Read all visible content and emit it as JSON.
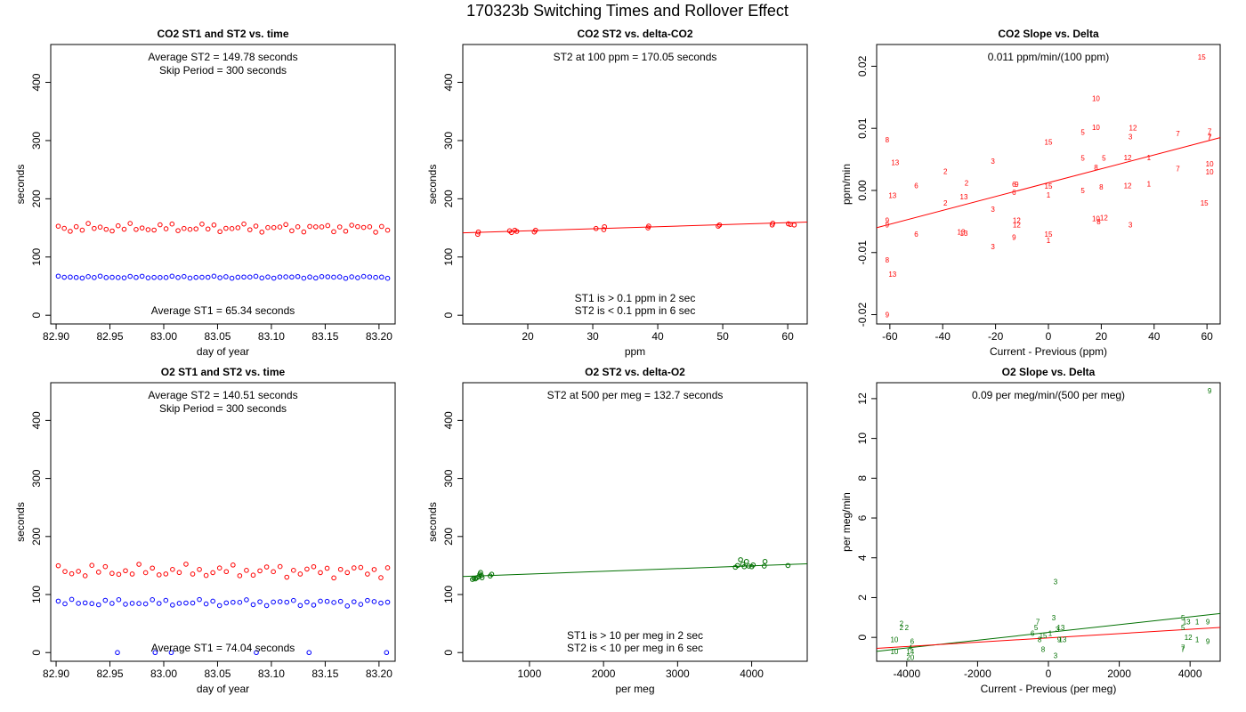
{
  "title": "170323b   Switching Times and Rollover Effect",
  "colors": {
    "red": "#ff0000",
    "blue": "#0000ff",
    "green": "#007000",
    "axis": "#000000"
  },
  "chart_data": [
    {
      "id": "co2-time",
      "type": "scatter",
      "title": "CO2 ST1 and ST2 vs. time",
      "xlabel": "day of year",
      "ylabel": "seconds",
      "xlim": [
        82.895,
        83.215
      ],
      "ylim": [
        -15,
        465
      ],
      "xticks": [
        82.9,
        82.95,
        83.0,
        83.05,
        83.1,
        83.15,
        83.2
      ],
      "xtick_labels": [
        "82.90",
        "82.95",
        "83.00",
        "83.05",
        "83.10",
        "83.15",
        "83.20"
      ],
      "yticks": [
        0,
        100,
        200,
        300,
        400
      ],
      "ytick_labels": [
        "0",
        "100",
        "200",
        "300",
        "400"
      ],
      "annotations": [
        {
          "text": "Average ST2 =  149.78  seconds",
          "pos": "top1"
        },
        {
          "text": "Skip Period =  300  seconds",
          "pos": "top2"
        },
        {
          "text": "Average ST1 =  65.34  seconds",
          "pos": "bottom1"
        }
      ],
      "series": [
        {
          "name": "ST2",
          "color": "red",
          "marker": "circle",
          "gen": "time",
          "t0": 82.902,
          "t1": 83.208,
          "n": 56,
          "base": 150,
          "amp": 8,
          "phase": 0.3
        },
        {
          "name": "ST1",
          "color": "blue",
          "marker": "circle",
          "gen": "time",
          "t0": 82.902,
          "t1": 83.208,
          "n": 56,
          "base": 65.3,
          "amp": 2,
          "phase": 1.1
        }
      ]
    },
    {
      "id": "co2-st2-delta",
      "type": "scatter",
      "title": "CO2 ST2 vs. delta-CO2",
      "xlabel": "ppm",
      "ylabel": "seconds",
      "xlim": [
        10,
        63
      ],
      "ylim": [
        -15,
        465
      ],
      "xticks": [
        20,
        30,
        40,
        50,
        60
      ],
      "xtick_labels": [
        "20",
        "30",
        "40",
        "50",
        "60"
      ],
      "yticks": [
        0,
        100,
        200,
        300,
        400
      ],
      "ytick_labels": [
        "0",
        "100",
        "200",
        "300",
        "400"
      ],
      "annotations": [
        {
          "text": "ST2 at 100 ppm =  170.05  seconds",
          "pos": "top1"
        },
        {
          "text": "ST1 is > 0.1 ppm in 2 sec",
          "pos": "bottom2"
        },
        {
          "text": "ST2 is < 0.1 ppm in 6 sec",
          "pos": "bottom1"
        }
      ],
      "series": [
        {
          "name": "ST2",
          "color": "red",
          "marker": "circle",
          "x": [
            12.3,
            12.4,
            17.2,
            17.5,
            18.0,
            18.3,
            21.0,
            21.2,
            30.5,
            31.7,
            31.8,
            38.5,
            38.6,
            49.3,
            49.5,
            57.6,
            57.7,
            60.1,
            60.4,
            61.0
          ],
          "y": [
            139,
            143,
            145,
            142,
            146,
            144,
            143,
            146,
            149,
            147,
            152,
            150,
            153,
            153,
            155,
            155,
            158,
            157,
            156,
            155
          ]
        }
      ],
      "lines": [
        {
          "color": "red",
          "x": [
            10,
            63
          ],
          "y": [
            141.5,
            160
          ]
        }
      ]
    },
    {
      "id": "co2-slope",
      "type": "scatter",
      "title": "CO2 Slope vs. Delta",
      "xlabel": "Current - Previous (ppm)",
      "ylabel": "ppm/min",
      "xlim": [
        -65,
        65
      ],
      "ylim": [
        -0.0215,
        0.0235
      ],
      "xticks": [
        -60,
        -40,
        -20,
        0,
        20,
        40,
        60
      ],
      "xtick_labels": [
        "-60",
        "-40",
        "-20",
        "0",
        "20",
        "40",
        "60"
      ],
      "yticks": [
        -0.02,
        -0.01,
        0.0,
        0.01,
        0.02
      ],
      "ytick_labels": [
        "-0.02",
        "-0.01",
        "0.00",
        "0.01",
        "0.02"
      ],
      "annotations": [
        {
          "text": "0.011  ppm/min/(100 ppm)",
          "pos": "top1"
        }
      ],
      "series": [
        {
          "name": "hours",
          "color": "red",
          "marker": "label",
          "labels": [
            "15",
            "8",
            "10",
            "7",
            "7",
            "7",
            "12",
            "3",
            "10",
            "5",
            "7",
            "15",
            "13",
            "5",
            "12",
            "1",
            "2",
            "3",
            "5",
            "10",
            "8",
            "7",
            "10",
            "2",
            "5",
            "6",
            "9",
            "6",
            "15",
            "12",
            "1",
            "8",
            "13",
            "6",
            "1",
            "13",
            "2",
            "3",
            "12",
            "15",
            "10",
            "9",
            "12",
            "8",
            "12",
            "3",
            "13",
            "13",
            "9",
            "6",
            "9",
            "15",
            "1",
            "8",
            "3",
            "13",
            "9"
          ],
          "x": [
            58,
            -61,
            18,
            61,
            61,
            61,
            32,
            31,
            18,
            13,
            49,
            0,
            -58,
            13,
            30,
            38,
            -39,
            -21,
            21,
            61,
            18,
            49,
            61,
            -31,
            13,
            -50,
            -12,
            -13,
            0,
            30,
            38,
            20,
            -59,
            -13,
            0,
            -32,
            -39,
            -21,
            21,
            59,
            18,
            -61,
            -12,
            19,
            -12,
            31,
            -33,
            -32,
            -13,
            -50,
            -61,
            0,
            0,
            -61,
            -21,
            -59,
            -61
          ],
          "y": [
            0.0215,
            0.0082,
            0.0148,
            0.0095,
            0.0085,
            0.0087,
            0.0101,
            0.0087,
            0.0102,
            0.0094,
            0.0092,
            0.0078,
            0.0045,
            0.0052,
            0.0053,
            0.0053,
            0.0031,
            0.0047,
            0.0052,
            0.0043,
            0.0037,
            0.0035,
            0.003,
            0.0012,
            0.0,
            0.0008,
            0.001,
            0.001,
            0.0007,
            0.0008,
            0.0011,
            0.0006,
            -0.0008,
            -0.0003,
            -0.0007,
            -0.001,
            -0.002,
            -0.003,
            -0.0044,
            -0.002,
            -0.0045,
            -0.0048,
            -0.0048,
            -0.005,
            -0.0055,
            -0.0055,
            -0.0067,
            -0.0069,
            -0.0075,
            -0.007,
            -0.0055,
            -0.007,
            -0.008,
            -0.0112,
            -0.009,
            -0.0135,
            -0.02
          ]
        }
      ],
      "lines": [
        {
          "color": "red",
          "x": [
            -65,
            65
          ],
          "y": [
            -0.006,
            0.0085
          ]
        }
      ]
    },
    {
      "id": "o2-time",
      "type": "scatter",
      "title": "O2 ST1 and ST2 vs. time",
      "xlabel": "day of year",
      "ylabel": "seconds",
      "xlim": [
        82.895,
        83.215
      ],
      "ylim": [
        -15,
        465
      ],
      "xticks": [
        82.9,
        82.95,
        83.0,
        83.05,
        83.1,
        83.15,
        83.2
      ],
      "xtick_labels": [
        "82.90",
        "82.95",
        "83.00",
        "83.05",
        "83.10",
        "83.15",
        "83.20"
      ],
      "yticks": [
        0,
        100,
        200,
        300,
        400
      ],
      "ytick_labels": [
        "0",
        "100",
        "200",
        "300",
        "400"
      ],
      "annotations": [
        {
          "text": "Average ST2 =  140.51  seconds",
          "pos": "top1"
        },
        {
          "text": "Skip Period =  300  seconds",
          "pos": "top2"
        },
        {
          "text": "Average ST1 =  74.04  seconds",
          "pos": "bottom1"
        }
      ],
      "series": [
        {
          "name": "ST2",
          "color": "red",
          "marker": "circle",
          "gen": "time",
          "t0": 82.902,
          "t1": 83.208,
          "n": 50,
          "base": 140.5,
          "amp": 12,
          "phase": 0.7
        },
        {
          "name": "ST1",
          "color": "blue",
          "marker": "circle",
          "gen": "time",
          "t0": 82.902,
          "t1": 83.208,
          "n": 50,
          "base": 86,
          "amp": 6,
          "phase": 2.0,
          "zeros": [
            82.957,
            82.992,
            83.007,
            83.086,
            83.135,
            83.207
          ]
        }
      ]
    },
    {
      "id": "o2-st2-delta",
      "type": "scatter",
      "title": "O2 ST2 vs. delta-O2",
      "xlabel": "per meg",
      "ylabel": "seconds",
      "xlim": [
        100,
        4750
      ],
      "ylim": [
        -15,
        465
      ],
      "xticks": [
        1000,
        2000,
        3000,
        4000
      ],
      "xtick_labels": [
        "1000",
        "2000",
        "3000",
        "4000"
      ],
      "yticks": [
        0,
        100,
        200,
        300,
        400
      ],
      "ytick_labels": [
        "0",
        "100",
        "200",
        "300",
        "400"
      ],
      "annotations": [
        {
          "text": "ST2 at 500 per meg =  132.7  seconds",
          "pos": "top1"
        },
        {
          "text": "ST1 is > 10 per meg in 2 sec",
          "pos": "bottom2"
        },
        {
          "text": "ST2 is < 10 per meg in 6 sec",
          "pos": "bottom1"
        }
      ],
      "series": [
        {
          "name": "ST2",
          "color": "green",
          "marker": "circle",
          "x": [
            230,
            250,
            270,
            290,
            320,
            330,
            340,
            350,
            360,
            470,
            490,
            3780,
            3810,
            3850,
            3880,
            3900,
            3930,
            3960,
            4000,
            4020,
            4170,
            4180,
            4490
          ],
          "y": [
            126,
            128,
            127,
            129,
            131,
            135,
            138,
            133,
            129,
            132,
            135,
            147,
            150,
            160,
            152,
            148,
            157,
            149,
            148,
            151,
            149,
            157,
            150
          ]
        }
      ],
      "lines": [
        {
          "color": "green",
          "x": [
            100,
            4750
          ],
          "y": [
            131,
            153
          ]
        }
      ]
    },
    {
      "id": "o2-slope",
      "type": "scatter",
      "title": "O2 Slope vs. Delta",
      "xlabel": "Current - Previous (per meg)",
      "ylabel": "per meg/min",
      "xlim": [
        -4850,
        4850
      ],
      "ylim": [
        -1.2,
        12.8
      ],
      "xticks": [
        -4000,
        -2000,
        0,
        2000,
        4000
      ],
      "xtick_labels": [
        "-4000",
        "-2000",
        "0",
        "2000",
        "4000"
      ],
      "yticks": [
        0,
        2,
        4,
        6,
        8,
        10,
        12
      ],
      "ytick_labels": [
        "0",
        "2",
        "4",
        "6",
        "8",
        "10",
        "12"
      ],
      "annotations": [
        {
          "text": "0.09  per meg/min/(500 per meg)",
          "pos": "top1"
        }
      ],
      "series": [
        {
          "name": "hours",
          "color": "green",
          "marker": "label",
          "labels": [
            "9",
            "3",
            "2",
            "2",
            "2",
            "10",
            "10",
            "6",
            "4",
            "14",
            "20",
            "3",
            "7",
            "5",
            "3",
            "13",
            "8",
            "6",
            "15",
            "1",
            "9",
            "13",
            "8",
            "5",
            "13",
            "1",
            "9",
            "5",
            "12",
            "1",
            "9",
            "7",
            "7",
            "3"
          ],
          "x": [
            4550,
            200,
            -4150,
            -4150,
            -4000,
            -4350,
            -4350,
            -3850,
            -3900,
            -3900,
            -3900,
            150,
            -300,
            -350,
            250,
            350,
            -250,
            -450,
            -150,
            50,
            300,
            400,
            -150,
            3800,
            3900,
            4200,
            4500,
            3800,
            3950,
            4200,
            4500,
            3800,
            3800,
            200
          ],
          "y": [
            12.4,
            2.8,
            0.7,
            0.5,
            0.5,
            -0.1,
            -0.7,
            -0.2,
            -0.5,
            -0.7,
            -1.0,
            1.0,
            0.8,
            0.5,
            0.4,
            0.5,
            -0.1,
            0.2,
            0.1,
            0.2,
            -0.1,
            -0.1,
            -0.6,
            1.0,
            0.8,
            0.8,
            0.8,
            0.5,
            0.0,
            -0.1,
            -0.2,
            -0.5,
            -0.6,
            -0.9
          ]
        }
      ],
      "lines": [
        {
          "color": "green",
          "x": [
            -4850,
            4850
          ],
          "y": [
            -0.7,
            1.2
          ]
        },
        {
          "color": "red",
          "x": [
            -4850,
            4850
          ],
          "y": [
            -0.55,
            0.5
          ]
        }
      ]
    }
  ]
}
